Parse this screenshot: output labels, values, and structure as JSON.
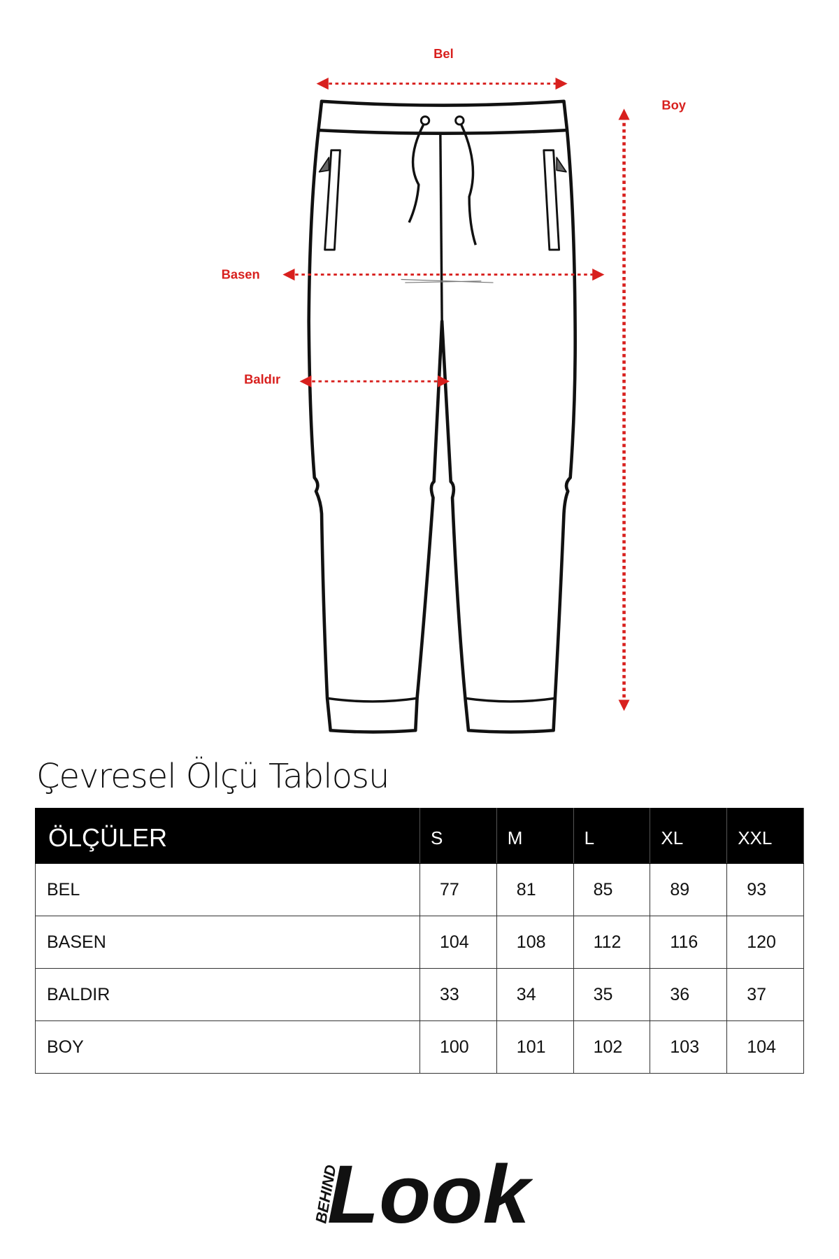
{
  "diagram": {
    "labels": {
      "bel": "Bel",
      "boy": "Boy",
      "basen": "Basen",
      "baldir": "Baldır"
    },
    "accent_color": "#d8201e"
  },
  "title": "Çevresel Ölçü Tablosu",
  "table": {
    "header": [
      "ÖLÇÜLER",
      "S",
      "M",
      "L",
      "XL",
      "XXL"
    ],
    "rows": [
      [
        "BEL",
        "77",
        "81",
        "85",
        "89",
        "93"
      ],
      [
        "BASEN",
        "104",
        "108",
        "112",
        "116",
        "120"
      ],
      [
        "BALDIR",
        "33",
        "34",
        "35",
        "36",
        "37"
      ],
      [
        "BOY",
        "100",
        "101",
        "102",
        "103",
        "104"
      ]
    ]
  },
  "logo": {
    "small": "BEHIND",
    "main": "Look"
  }
}
